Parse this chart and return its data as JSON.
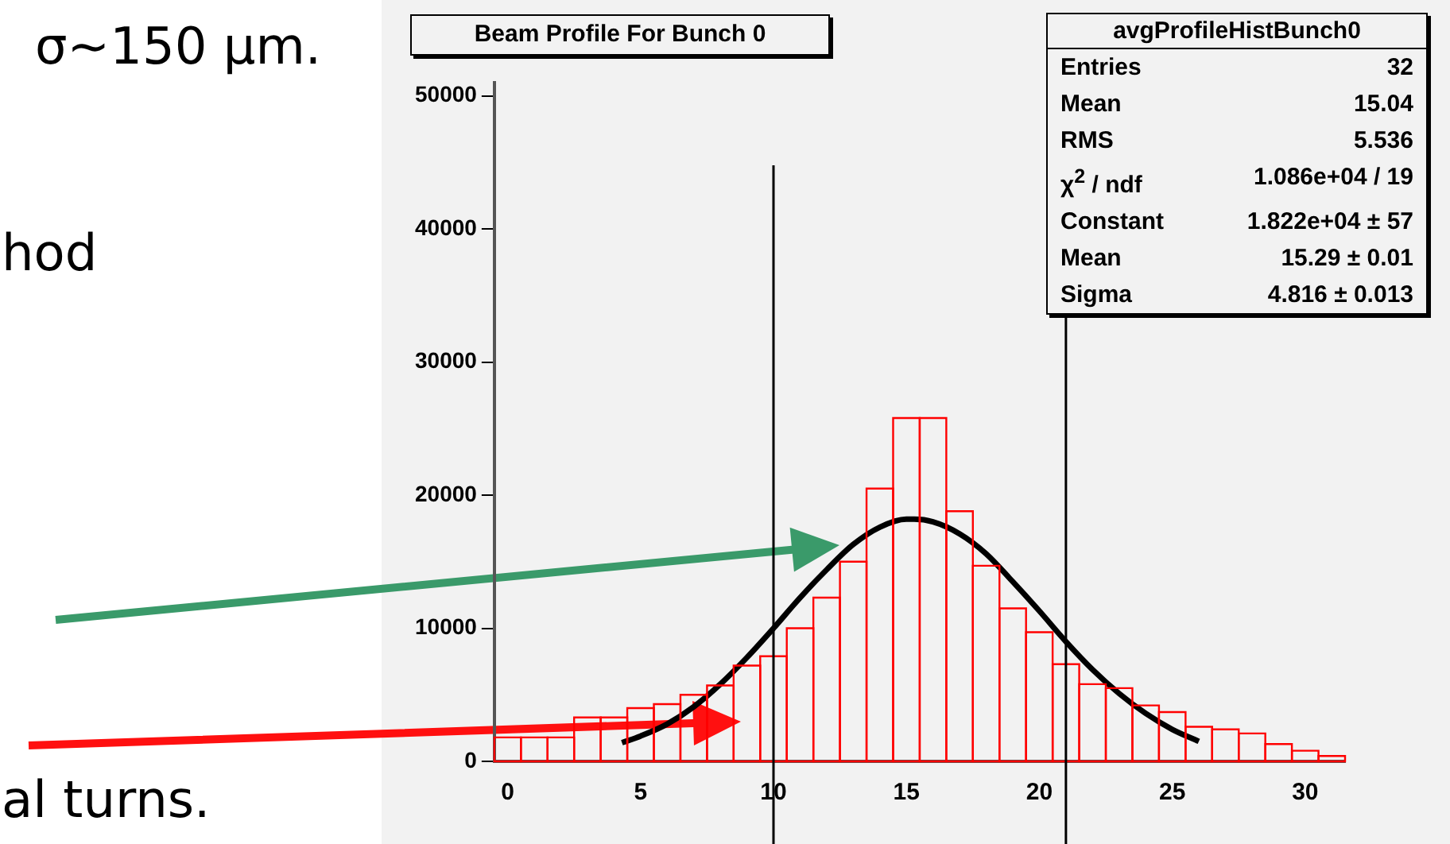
{
  "chart_data": {
    "type": "histogram",
    "title": "Beam Profile For Bunch 0",
    "xlim": [
      -0.5,
      31.5
    ],
    "xticks": [
      0,
      5,
      10,
      15,
      20,
      25,
      30
    ],
    "ylim": [
      0,
      51000
    ],
    "yticks": [
      0,
      10000,
      20000,
      30000,
      40000,
      50000
    ],
    "grid": false,
    "legend": false,
    "series": [
      {
        "color": "#ff0000",
        "bins": [
          -0.5,
          0.5,
          1.5,
          2.5,
          3.5,
          4.5,
          5.5,
          6.5,
          7.5,
          8.5,
          9.5,
          10.5,
          11.5,
          12.5,
          13.5,
          14.5,
          15.5,
          16.5,
          17.5,
          18.5,
          19.5,
          20.5,
          21.5,
          22.5,
          23.5,
          24.5,
          25.5,
          26.5,
          27.5,
          28.5,
          29.5,
          30.5,
          31.5
        ],
        "values": [
          1800,
          1800,
          1800,
          3300,
          3300,
          4000,
          4300,
          5000,
          5700,
          7200,
          7900,
          10000,
          12300,
          15000,
          20500,
          25800,
          25800,
          18800,
          14700,
          11500,
          9700,
          7300,
          5800,
          5500,
          4200,
          3700,
          2600,
          2400,
          2100,
          1300,
          800,
          400
        ]
      },
      {
        "type": "line",
        "color": "#000000",
        "x": [
          4.3,
          5,
          6,
          7,
          8,
          9,
          10,
          11,
          12,
          13,
          14,
          15,
          15.29,
          16,
          17,
          18,
          19,
          20,
          21,
          22,
          23,
          24,
          25,
          26
        ],
        "values": [
          1400,
          1900,
          2800,
          4100,
          5800,
          7800,
          10000,
          12300,
          14400,
          16300,
          17600,
          18200,
          18200,
          18000,
          17100,
          15600,
          13500,
          11300,
          9000,
          6900,
          5100,
          3600,
          2400,
          1500
        ]
      }
    ],
    "ref_lines": [
      {
        "axis": "x",
        "value": 10,
        "color": "#000000"
      },
      {
        "axis": "x",
        "value": 21,
        "color": "#000000"
      }
    ],
    "annotations": [
      "σ~150 μm.",
      "hod",
      "al turns.",
      "avgProfileHistBunch0",
      "Entries  32",
      "Mean  15.04",
      "RMS  5.536",
      "χ$^{2}$ / ndf  1.086e+04 / 19",
      "Constant  1.822e+04 ± 57",
      "Mean  15.29 ± 0.01",
      "Sigma  4.816 ± 0.013"
    ]
  }
}
